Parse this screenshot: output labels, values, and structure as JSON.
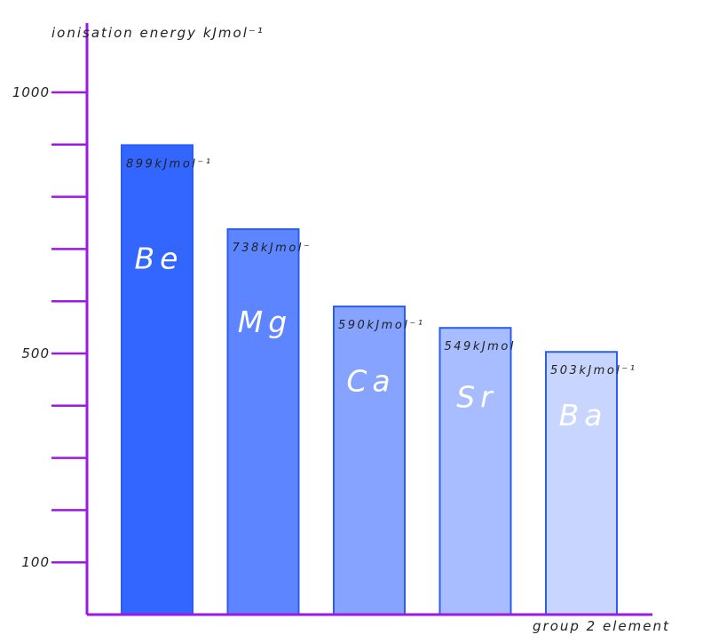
{
  "chart_data": {
    "type": "bar",
    "title": "",
    "ylabel": "ionisation energy kJmol⁻¹",
    "xlabel": "group 2 element",
    "ylim": [
      0,
      1000
    ],
    "y_tick_labels": [
      {
        "value": 1000,
        "label": "1000"
      },
      {
        "value": 500,
        "label": "500"
      },
      {
        "value": 100,
        "label": "100"
      }
    ],
    "categories": [
      "Be",
      "Mg",
      "Ca",
      "Sr",
      "Ba"
    ],
    "values": [
      899,
      738,
      590,
      549,
      503
    ],
    "data_labels": [
      "899kJmol⁻¹",
      "738kJmol⁻",
      "590kJmol⁻¹",
      "549kJmol",
      "503kJmol⁻¹"
    ],
    "colors": [
      "#3366ff",
      "#5c85ff",
      "#85a3ff",
      "#a8bdff",
      "#c8d6ff"
    ],
    "bar_border_color": "#2a5ef2",
    "axis_color": "#9b19e6",
    "grid": false,
    "legend": "none"
  }
}
